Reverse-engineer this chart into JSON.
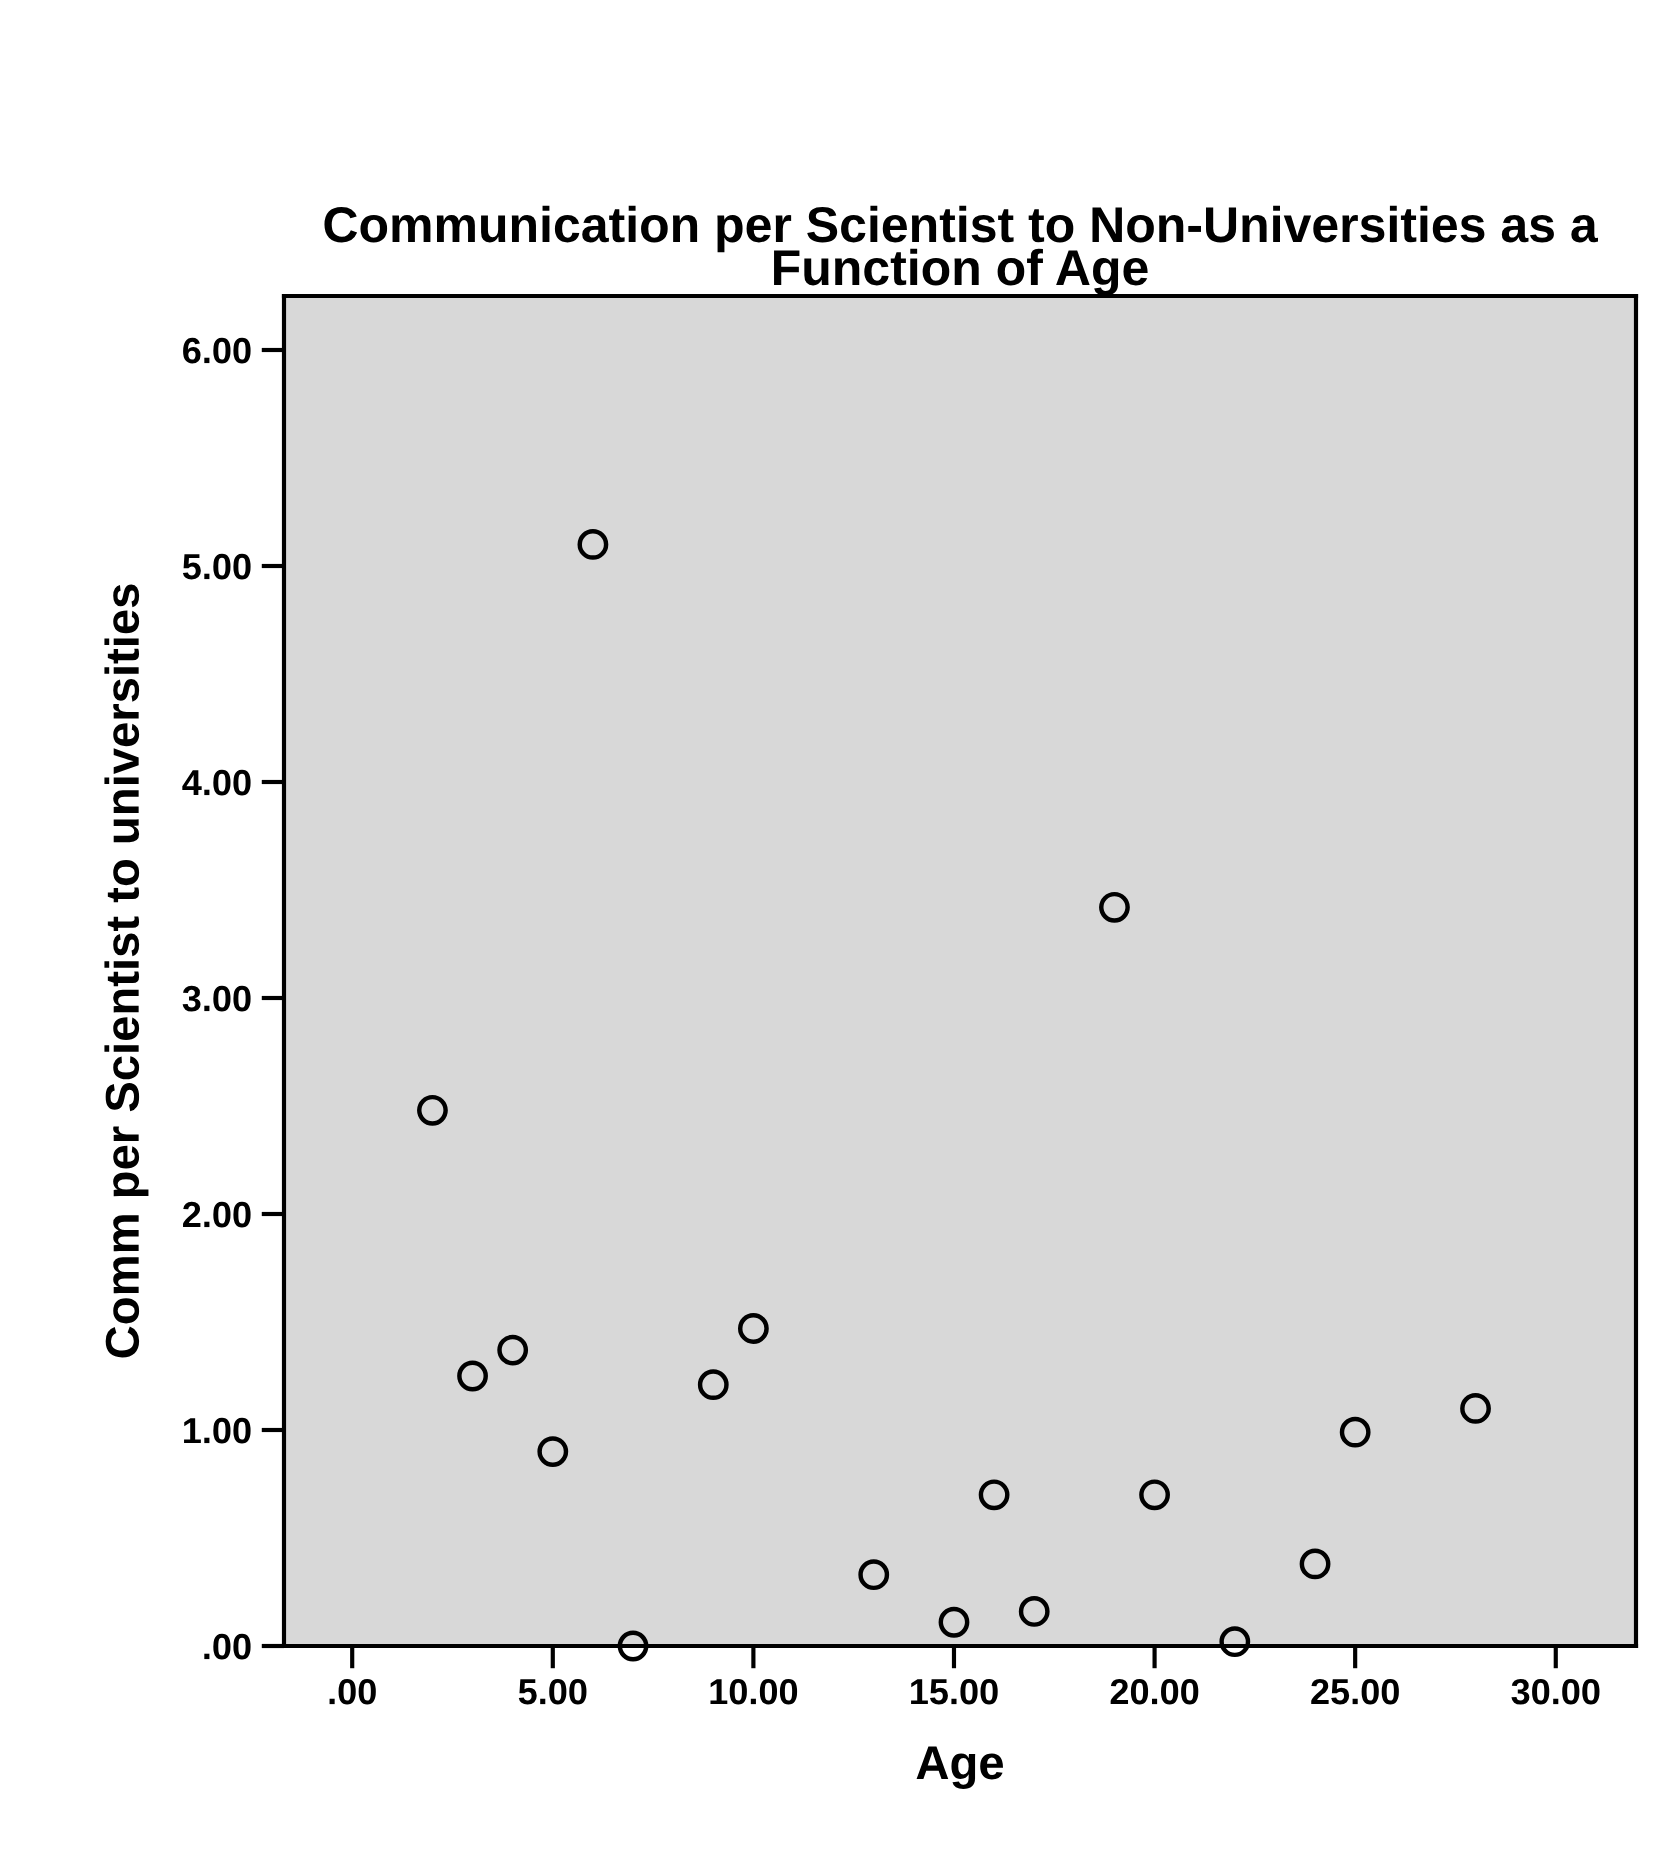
{
  "chart_data": {
    "type": "scatter",
    "title": "Communication per Scientist to Non-Universities as a\nFunction of Age",
    "xlabel": "Age",
    "ylabel": "Comm per Scientist to universities",
    "x": [
      2,
      3,
      4,
      5,
      6,
      7,
      9,
      10,
      13,
      15,
      16,
      17,
      19,
      20,
      22,
      24,
      25,
      28
    ],
    "values": [
      2.48,
      1.25,
      1.37,
      0.9,
      5.1,
      0.0,
      1.21,
      1.47,
      0.33,
      0.11,
      0.7,
      0.16,
      3.42,
      0.7,
      0.02,
      0.38,
      0.99,
      1.1
    ],
    "color": "#000000",
    "marker": "circle",
    "grid": false,
    "xlim": [
      -1.7,
      32
    ],
    "ylim": [
      0,
      6.25
    ],
    "xticks": [
      {
        "value": 0,
        "label": ".00"
      },
      {
        "value": 5,
        "label": "5.00"
      },
      {
        "value": 10,
        "label": "10.00"
      },
      {
        "value": 15,
        "label": "15.00"
      },
      {
        "value": 20,
        "label": "20.00"
      },
      {
        "value": 25,
        "label": "25.00"
      },
      {
        "value": 30,
        "label": "30.00"
      }
    ],
    "yticks": [
      {
        "value": 0,
        "label": ".00"
      },
      {
        "value": 1,
        "label": "1.00"
      },
      {
        "value": 2,
        "label": "2.00"
      },
      {
        "value": 3,
        "label": "3.00"
      },
      {
        "value": 4,
        "label": "4.00"
      },
      {
        "value": 5,
        "label": "5.00"
      },
      {
        "value": 6,
        "label": "6.00"
      }
    ]
  }
}
